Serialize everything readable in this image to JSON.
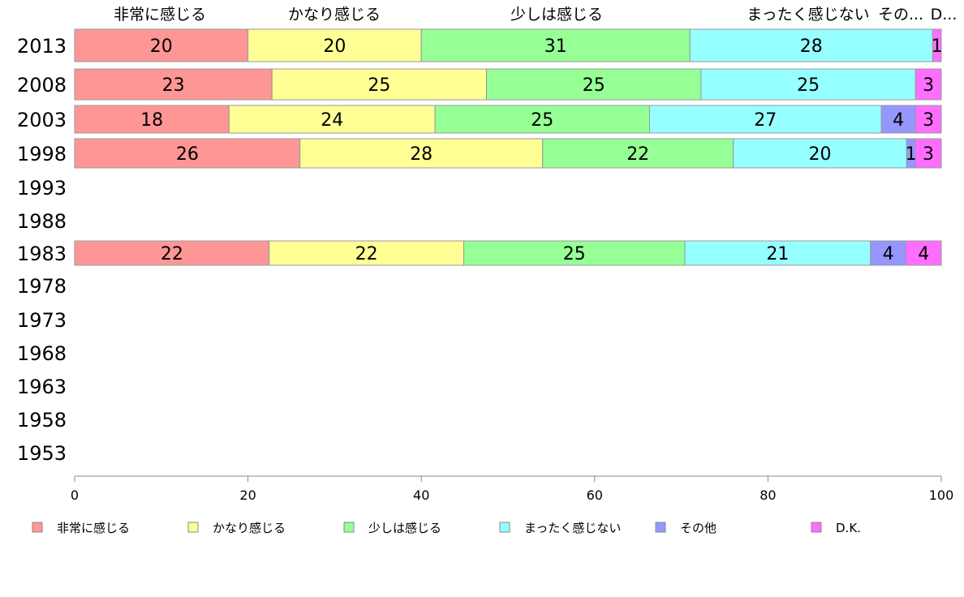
{
  "chart_data": {
    "type": "bar",
    "orientation": "horizontal-stacked",
    "categories": [
      "2013",
      "2008",
      "2003",
      "1998",
      "1993",
      "1988",
      "1983",
      "1978",
      "1973",
      "1968",
      "1963",
      "1958",
      "1953"
    ],
    "series": [
      {
        "name": "非常に感じる",
        "color": "#ff9696",
        "values": [
          20,
          23,
          18,
          26,
          null,
          null,
          22,
          null,
          null,
          null,
          null,
          null,
          null
        ]
      },
      {
        "name": "かなり感じる",
        "color": "#ffff96",
        "values": [
          20,
          25,
          24,
          28,
          null,
          null,
          22,
          null,
          null,
          null,
          null,
          null,
          null
        ]
      },
      {
        "name": "少しは感じる",
        "color": "#96ff96",
        "values": [
          31,
          25,
          25,
          22,
          null,
          null,
          25,
          null,
          null,
          null,
          null,
          null,
          null
        ]
      },
      {
        "name": "まったく感じない",
        "color": "#96ffff",
        "values": [
          28,
          25,
          27,
          20,
          null,
          null,
          21,
          null,
          null,
          null,
          null,
          null,
          null
        ]
      },
      {
        "name": "その他",
        "color": "#9696ff",
        "values": [
          0,
          0,
          4,
          1,
          null,
          null,
          4,
          null,
          null,
          null,
          null,
          null,
          null
        ]
      },
      {
        "name": "D.K.",
        "color": "#ff6eff",
        "values": [
          1,
          3,
          3,
          3,
          null,
          null,
          4,
          null,
          null,
          null,
          null,
          null,
          null
        ]
      }
    ],
    "top_labels": [
      "非常に感じる",
      "かなり感じる",
      "少しは感じる",
      "まったく感じない",
      "その...",
      "D..."
    ],
    "xlim": [
      0,
      100
    ],
    "xticks": [
      "0",
      "20",
      "40",
      "60",
      "80",
      "100"
    ],
    "legend": "bottom",
    "grid": false
  }
}
